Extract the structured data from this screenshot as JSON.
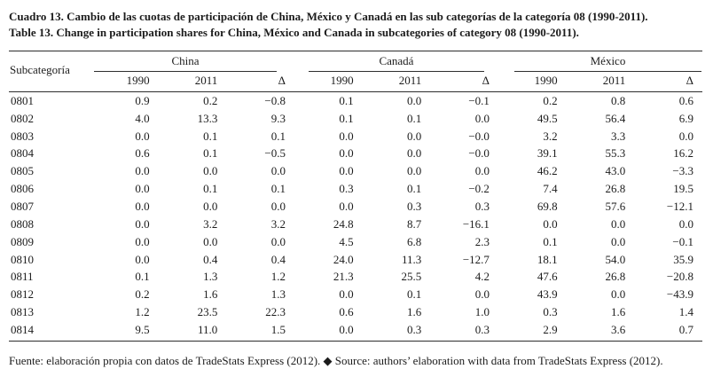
{
  "page": {
    "title_es": "Cuadro 13. Cambio de las cuotas de participación de China, México y Canadá en las sub categorías de la categoría 08 (1990-2011).",
    "title_en": "Table 13. Change in participation shares for China, México and Canada in subcategories of category 08 (1990-2011).",
    "footer": "Fuente: elaboración propia con datos de TradeStats Express (2012). ◆ Source: authors’ elaboration with data from TradeStats Express (2012)."
  },
  "table": {
    "row_header": "Subcategoría",
    "groups": [
      "China",
      "Canadá",
      "México"
    ],
    "sub_headers": [
      "1990",
      "2011",
      "Δ"
    ],
    "rows": [
      {
        "code": "0801",
        "values": [
          "0.9",
          "0.2",
          "−0.8",
          "0.1",
          "0.0",
          "−0.1",
          "0.2",
          "0.8",
          "0.6"
        ]
      },
      {
        "code": "0802",
        "values": [
          "4.0",
          "13.3",
          "9.3",
          "0.1",
          "0.1",
          "0.0",
          "49.5",
          "56.4",
          "6.9"
        ]
      },
      {
        "code": "0803",
        "values": [
          "0.0",
          "0.1",
          "0.1",
          "0.0",
          "0.0",
          "−0.0",
          "3.2",
          "3.3",
          "0.0"
        ]
      },
      {
        "code": "0804",
        "values": [
          "0.6",
          "0.1",
          "−0.5",
          "0.0",
          "0.0",
          "−0.0",
          "39.1",
          "55.3",
          "16.2"
        ]
      },
      {
        "code": "0805",
        "values": [
          "0.0",
          "0.0",
          "0.0",
          "0.0",
          "0.0",
          "0.0",
          "46.2",
          "43.0",
          "−3.3"
        ]
      },
      {
        "code": "0806",
        "values": [
          "0.0",
          "0.1",
          "0.1",
          "0.3",
          "0.1",
          "−0.2",
          "7.4",
          "26.8",
          "19.5"
        ]
      },
      {
        "code": "0807",
        "values": [
          "0.0",
          "0.0",
          "0.0",
          "0.0",
          "0.3",
          "0.3",
          "69.8",
          "57.6",
          "−12.1"
        ]
      },
      {
        "code": "0808",
        "values": [
          "0.0",
          "3.2",
          "3.2",
          "24.8",
          "8.7",
          "−16.1",
          "0.0",
          "0.0",
          "0.0"
        ]
      },
      {
        "code": "0809",
        "values": [
          "0.0",
          "0.0",
          "0.0",
          "4.5",
          "6.8",
          "2.3",
          "0.1",
          "0.0",
          "−0.1"
        ]
      },
      {
        "code": "0810",
        "values": [
          "0.0",
          "0.4",
          "0.4",
          "24.0",
          "11.3",
          "−12.7",
          "18.1",
          "54.0",
          "35.9"
        ]
      },
      {
        "code": "0811",
        "values": [
          "0.1",
          "1.3",
          "1.2",
          "21.3",
          "25.5",
          "4.2",
          "47.6",
          "26.8",
          "−20.8"
        ]
      },
      {
        "code": "0812",
        "values": [
          "0.2",
          "1.6",
          "1.3",
          "0.0",
          "0.1",
          "0.0",
          "43.9",
          "0.0",
          "−43.9"
        ]
      },
      {
        "code": "0813",
        "values": [
          "1.2",
          "23.5",
          "22.3",
          "0.6",
          "1.6",
          "1.0",
          "0.3",
          "1.6",
          "1.4"
        ]
      },
      {
        "code": "0814",
        "values": [
          "9.5",
          "11.0",
          "1.5",
          "0.0",
          "0.3",
          "0.3",
          "2.9",
          "3.6",
          "0.7"
        ]
      }
    ]
  }
}
